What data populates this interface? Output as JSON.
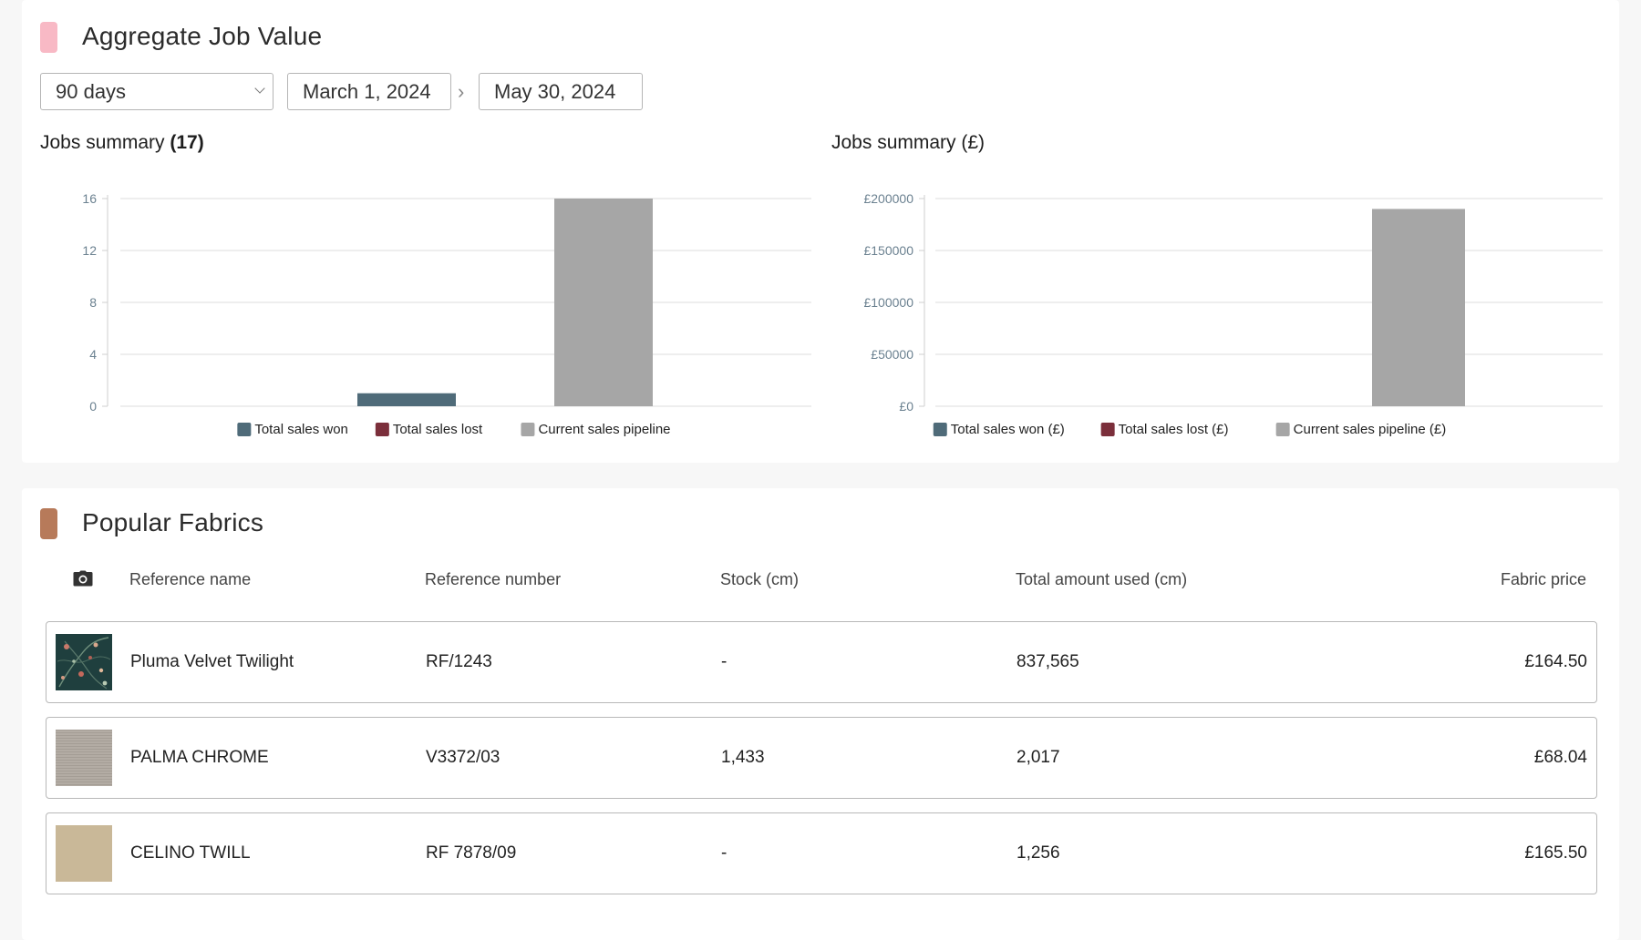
{
  "aggregate": {
    "title": "Aggregate Job Value",
    "accent_color": "#f8b9c5",
    "period_select": "90 days",
    "date_start": "March 1, 2024",
    "date_separator": "›",
    "date_end": "May 30, 2024"
  },
  "chart_data": [
    {
      "type": "bar",
      "title_prefix": "Jobs summary",
      "title_count": "(17)",
      "yticks": [
        "16",
        "12",
        "8",
        "4",
        "0"
      ],
      "ylim": [
        0,
        16
      ],
      "grid": true,
      "legend_position": "bottom-center",
      "series": [
        {
          "name": "Total sales won",
          "color": "#4f6b79",
          "value": 1
        },
        {
          "name": "Total sales lost",
          "color": "#7b2f3b",
          "value": 0
        },
        {
          "name": "Current sales pipeline",
          "color": "#a6a6a6",
          "value": 16
        }
      ]
    },
    {
      "type": "bar",
      "title_prefix": "Jobs summary",
      "title_count": "(£)",
      "yticks": [
        "£200000",
        "£150000",
        "£100000",
        "£50000",
        "£0"
      ],
      "ylim": [
        0,
        200000
      ],
      "grid": true,
      "legend_position": "bottom-center",
      "series": [
        {
          "name": "Total sales won (£)",
          "color": "#4f6b79",
          "value": 0
        },
        {
          "name": "Total sales lost (£)",
          "color": "#7b2f3b",
          "value": 0
        },
        {
          "name": "Current sales pipeline (£)",
          "color": "#a6a6a6",
          "value": 190000
        }
      ]
    }
  ],
  "fabrics": {
    "title": "Popular Fabrics",
    "accent_color": "#b77a5a",
    "columns": {
      "photo_icon": "camera-icon",
      "name": "Reference name",
      "number": "Reference number",
      "stock": "Stock (cm)",
      "used": "Total amount used (cm)",
      "price": "Fabric price"
    },
    "rows": [
      {
        "name": "Pluma Velvet Twilight",
        "number": "RF/1243",
        "stock": "-",
        "used": "837,565",
        "price": "£164.50",
        "swatch_color": "#1f3f3e"
      },
      {
        "name": "PALMA CHROME",
        "number": "V3372/03",
        "stock": "1,433",
        "used": "2,017",
        "price": "£68.04",
        "swatch_color": "#b1aaa2"
      },
      {
        "name": "CELINO TWILL",
        "number": "RF 7878/09",
        "stock": "-",
        "used": "1,256",
        "price": "£165.50",
        "swatch_color": "#c9b898"
      }
    ]
  }
}
